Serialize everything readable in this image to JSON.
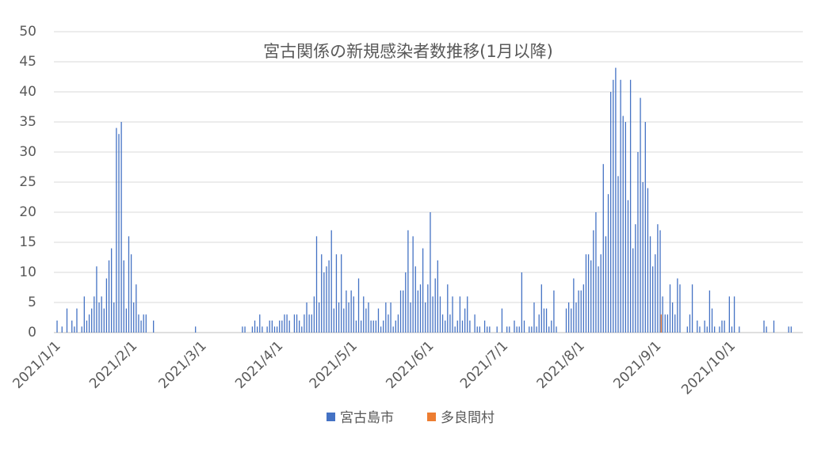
{
  "chart_data": {
    "type": "bar",
    "title": "宮古関係の新規感染者数推移(1月以降)",
    "categories": [
      "2021/1/1",
      null,
      null,
      null,
      null,
      null,
      null,
      null,
      null,
      null,
      null,
      null,
      null,
      null,
      null,
      null,
      null,
      null,
      null,
      null,
      null,
      null,
      null,
      null,
      null,
      null,
      null,
      null,
      null,
      null,
      null,
      "2021/2/1",
      null,
      null,
      null,
      null,
      null,
      null,
      null,
      null,
      null,
      null,
      null,
      null,
      null,
      null,
      null,
      null,
      null,
      null,
      null,
      null,
      null,
      null,
      null,
      null,
      null,
      null,
      null,
      "2021/3/1",
      null,
      null,
      null,
      null,
      null,
      null,
      null,
      null,
      null,
      null,
      null,
      null,
      null,
      null,
      null,
      null,
      null,
      null,
      null,
      null,
      null,
      null,
      null,
      null,
      null,
      null,
      null,
      null,
      null,
      null,
      "2021/4/1",
      null,
      null,
      null,
      null,
      null,
      null,
      null,
      null,
      null,
      null,
      null,
      null,
      null,
      null,
      null,
      null,
      null,
      null,
      null,
      null,
      null,
      null,
      null,
      null,
      null,
      null,
      null,
      null,
      null,
      "2021/5/1",
      null,
      null,
      null,
      null,
      null,
      null,
      null,
      null,
      null,
      null,
      null,
      null,
      null,
      null,
      null,
      null,
      null,
      null,
      null,
      null,
      null,
      null,
      null,
      null,
      null,
      null,
      null,
      null,
      null,
      null,
      "2021/6/1",
      null,
      null,
      null,
      null,
      null,
      null,
      null,
      null,
      null,
      null,
      null,
      null,
      null,
      null,
      null,
      null,
      null,
      null,
      null,
      null,
      null,
      null,
      null,
      null,
      null,
      null,
      null,
      null,
      null,
      "2021/7/1",
      null,
      null,
      null,
      null,
      null,
      null,
      null,
      null,
      null,
      null,
      null,
      null,
      null,
      null,
      null,
      null,
      null,
      null,
      null,
      null,
      null,
      null,
      null,
      null,
      null,
      null,
      null,
      null,
      null,
      null,
      "2021/8/1",
      null,
      null,
      null,
      null,
      null,
      null,
      null,
      null,
      null,
      null,
      null,
      null,
      null,
      null,
      null,
      null,
      null,
      null,
      null,
      null,
      null,
      null,
      null,
      null,
      null,
      null,
      null,
      null,
      null,
      null,
      "2021/9/1",
      null,
      null,
      null,
      null,
      null,
      null,
      null,
      null,
      null,
      null,
      null,
      null,
      null,
      null,
      null,
      null,
      null,
      null,
      null,
      null,
      null,
      null,
      null,
      null,
      null,
      null,
      null,
      null,
      null,
      "2021/10/1",
      null,
      null,
      null,
      null,
      null,
      null,
      null,
      null,
      null,
      null,
      null,
      null,
      null,
      null,
      null,
      null,
      null,
      null,
      null,
      null,
      null,
      null,
      null,
      null,
      null,
      null,
      null,
      null,
      null
    ],
    "series": [
      {
        "name": "宮古島市",
        "color": "#4472c4",
        "values": [
          0,
          2,
          0,
          1,
          0,
          4,
          0,
          2,
          1,
          4,
          0,
          1,
          6,
          2,
          3,
          4,
          6,
          11,
          5,
          6,
          4,
          9,
          12,
          14,
          5,
          34,
          33,
          35,
          12,
          4,
          16,
          13,
          5,
          8,
          3,
          2,
          3,
          3,
          0,
          0,
          2,
          0,
          0,
          0,
          0,
          0,
          0,
          0,
          0,
          0,
          0,
          0,
          0,
          0,
          0,
          0,
          0,
          1,
          0,
          0,
          0,
          0,
          0,
          0,
          0,
          0,
          0,
          0,
          0,
          0,
          0,
          0,
          0,
          0,
          0,
          0,
          1,
          1,
          0,
          0,
          1,
          2,
          1,
          3,
          1,
          0,
          1,
          2,
          2,
          1,
          1,
          2,
          2,
          3,
          3,
          2,
          0,
          3,
          3,
          2,
          1,
          3,
          5,
          3,
          3,
          6,
          16,
          5,
          13,
          10,
          11,
          12,
          17,
          4,
          13,
          5,
          13,
          4,
          7,
          5,
          7,
          6,
          2,
          9,
          2,
          6,
          4,
          5,
          2,
          2,
          2,
          4,
          1,
          2,
          5,
          3,
          5,
          1,
          2,
          3,
          7,
          7,
          10,
          17,
          5,
          16,
          11,
          7,
          8,
          14,
          5,
          8,
          20,
          6,
          9,
          12,
          6,
          3,
          2,
          8,
          3,
          6,
          1,
          2,
          6,
          2,
          4,
          6,
          2,
          0,
          3,
          1,
          1,
          0,
          2,
          1,
          1,
          0,
          0,
          1,
          0,
          4,
          0,
          1,
          1,
          0,
          2,
          1,
          1,
          10,
          2,
          0,
          1,
          1,
          5,
          1,
          3,
          8,
          4,
          4,
          1,
          2,
          7,
          1,
          0,
          0,
          0,
          4,
          5,
          4,
          9,
          5,
          7,
          7,
          8,
          13,
          13,
          12,
          17,
          20,
          11,
          13,
          28,
          16,
          23,
          40,
          42,
          44,
          26,
          42,
          36,
          35,
          22,
          42,
          14,
          18,
          30,
          39,
          25,
          35,
          24,
          16,
          11,
          13,
          18,
          17,
          6,
          3,
          3,
          8,
          5,
          3,
          9,
          8,
          0,
          0,
          1,
          3,
          8,
          0,
          2,
          1,
          0,
          2,
          1,
          7,
          4,
          1,
          0,
          1,
          2,
          2,
          0,
          6,
          1,
          6,
          0,
          1,
          0,
          0,
          0,
          0,
          0,
          0,
          0,
          0,
          0,
          2,
          1,
          0,
          0,
          2,
          0,
          0,
          0,
          0,
          0,
          1,
          1,
          0,
          0,
          0,
          0
        ]
      },
      {
        "name": "多良間村",
        "color": "#ed7d31",
        "values": [
          0,
          0,
          0,
          0,
          0,
          0,
          0,
          0,
          0,
          0,
          0,
          0,
          0,
          0,
          0,
          0,
          0,
          0,
          0,
          0,
          0,
          0,
          0,
          0,
          0,
          0,
          0,
          0,
          0,
          0,
          0,
          0,
          0,
          0,
          0,
          0,
          0,
          0,
          0,
          0,
          0,
          0,
          0,
          0,
          0,
          0,
          0,
          0,
          0,
          0,
          0,
          0,
          0,
          0,
          0,
          0,
          0,
          0,
          0,
          0,
          0,
          0,
          0,
          0,
          0,
          0,
          0,
          0,
          0,
          0,
          0,
          0,
          0,
          0,
          0,
          0,
          0,
          0,
          0,
          0,
          0,
          0,
          0,
          0,
          0,
          0,
          0,
          0,
          0,
          0,
          0,
          0,
          0,
          0,
          0,
          0,
          0,
          0,
          0,
          0,
          0,
          0,
          0,
          0,
          0,
          0,
          0,
          0,
          0,
          0,
          0,
          0,
          0,
          0,
          0,
          0,
          0,
          0,
          0,
          0,
          0,
          0,
          0,
          0,
          0,
          0,
          0,
          0,
          0,
          0,
          0,
          0,
          0,
          0,
          0,
          0,
          0,
          0,
          0,
          0,
          0,
          0,
          0,
          0,
          0,
          0,
          0,
          0,
          0,
          0,
          0,
          0,
          0,
          0,
          0,
          0,
          0,
          0,
          0,
          0,
          0,
          0,
          0,
          0,
          0,
          0,
          0,
          0,
          0,
          0,
          0,
          0,
          0,
          0,
          0,
          0,
          0,
          0,
          0,
          0,
          0,
          0,
          0,
          0,
          0,
          0,
          0,
          0,
          0,
          0,
          0,
          0,
          0,
          0,
          0,
          0,
          0,
          0,
          0,
          0,
          0,
          0,
          0,
          0,
          0,
          0,
          0,
          0,
          0,
          0,
          0,
          0,
          0,
          0,
          0,
          0,
          0,
          0,
          0,
          0,
          0,
          0,
          0,
          0,
          0,
          0,
          0,
          0,
          0,
          0,
          0,
          0,
          0,
          0,
          0,
          0,
          0,
          0,
          0,
          0,
          0,
          0,
          0,
          0,
          0,
          3,
          0,
          0,
          0,
          0,
          0,
          0,
          0,
          0,
          0,
          0,
          0,
          0,
          0,
          0,
          0,
          0,
          0,
          0,
          0,
          0,
          0,
          0,
          0,
          0,
          0,
          0,
          0,
          0,
          0,
          0,
          0,
          0,
          0,
          0,
          0,
          0,
          0,
          0,
          0,
          0,
          0,
          0,
          0,
          0,
          0,
          0,
          0,
          0,
          0,
          0,
          0,
          0,
          0,
          0,
          0,
          0,
          0
        ]
      }
    ],
    "ylim": [
      0,
      50
    ],
    "yticks": [
      0,
      5,
      10,
      15,
      20,
      25,
      30,
      35,
      40,
      45,
      50
    ],
    "grid": true,
    "legend": "bottom"
  }
}
